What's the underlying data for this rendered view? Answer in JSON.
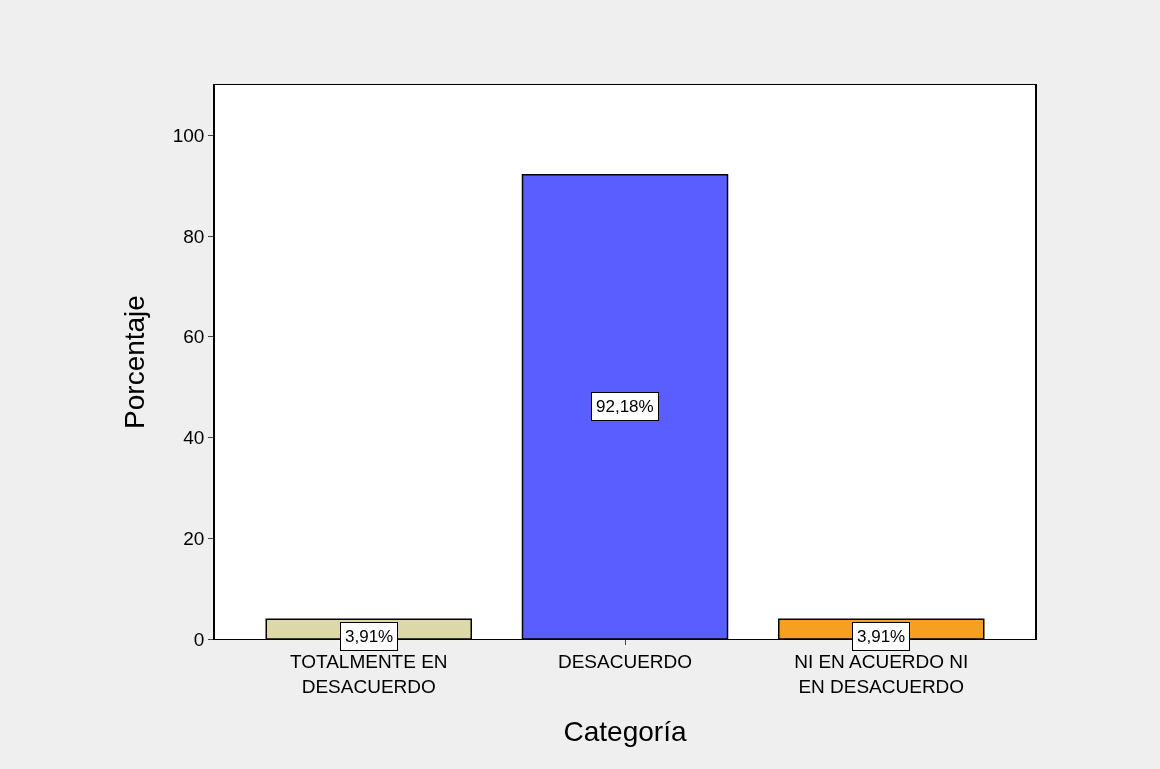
{
  "chart_data": {
    "type": "bar",
    "xlabel": "Categoría",
    "ylabel": "Porcentaje",
    "categories": [
      "TOTALMENTE EN\nDESACUERDO",
      "DESACUERDO",
      "NI EN ACUERDO NI\nEN DESACUERDO"
    ],
    "values": [
      3.91,
      92.18,
      3.91
    ],
    "colors": [
      "#dcd8a8",
      "#5a5eff",
      "#f5a020"
    ],
    "value_labels": [
      "3,91%",
      "92,18%",
      "3,91%"
    ],
    "ylim": [
      0,
      110
    ],
    "yticks": [
      0,
      20,
      40,
      60,
      80,
      100
    ],
    "grid": false
  }
}
